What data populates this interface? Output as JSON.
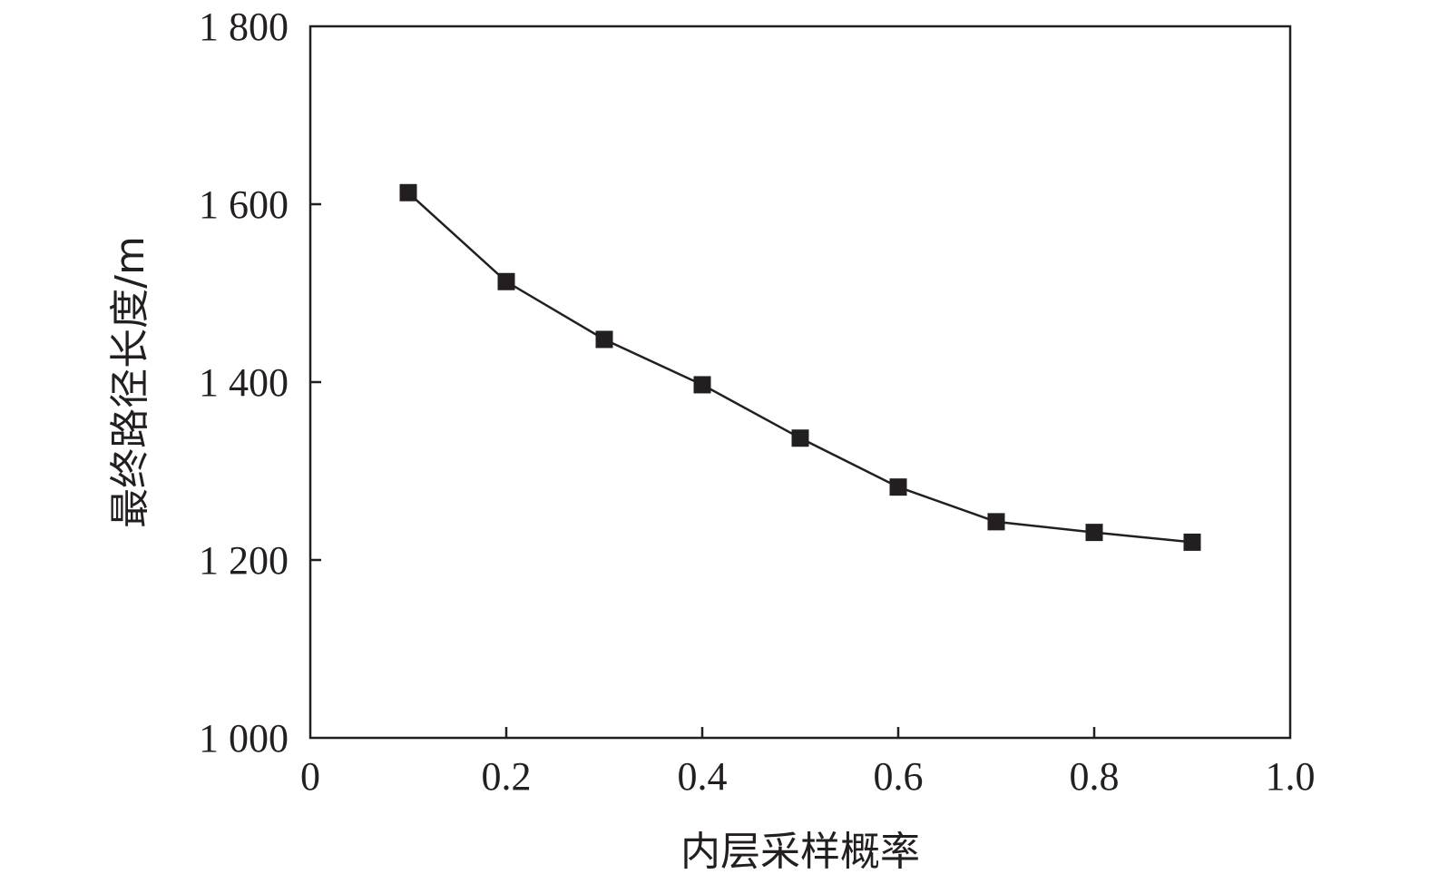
{
  "chart_data": {
    "type": "line",
    "title": "",
    "xlabel": "内层采样概率",
    "ylabel": "最终路径长度/m",
    "xlim": [
      0,
      1.0
    ],
    "ylim": [
      1000,
      1800
    ],
    "x_ticks": [
      "0",
      "0.2",
      "0.4",
      "0.6",
      "0.8",
      "1.0"
    ],
    "x_tick_values": [
      0,
      0.2,
      0.4,
      0.6,
      0.8,
      1.0
    ],
    "y_ticks": [
      "1 000",
      "1 200",
      "1 400",
      "1 600",
      "1 800"
    ],
    "y_tick_values": [
      1000,
      1200,
      1400,
      1600,
      1800
    ],
    "grid": false,
    "marker": "square",
    "line_color": "#231f20",
    "series": [
      {
        "x": [
          0.1,
          0.2,
          0.3,
          0.4,
          0.5,
          0.6,
          0.7,
          0.8,
          0.9
        ],
        "values": [
          1613,
          1513,
          1448,
          1397,
          1337,
          1282,
          1243,
          1231,
          1220
        ]
      }
    ]
  }
}
